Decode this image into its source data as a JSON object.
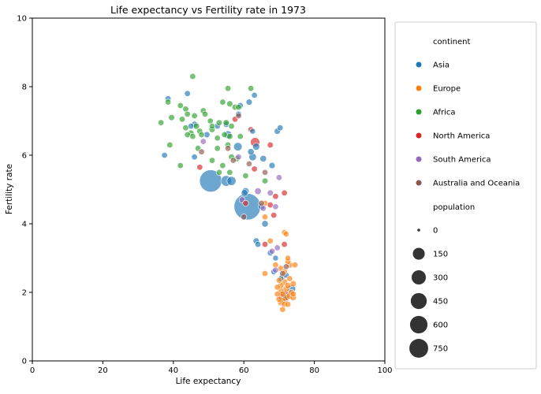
{
  "chart_data": {
    "type": "scatter",
    "title": "Life expectancy vs Fertility rate in 1973",
    "xlabel": "Life expectancy",
    "ylabel": "Fertility rate",
    "xlim": [
      0,
      100
    ],
    "ylim": [
      0,
      10
    ],
    "xticks": [
      "0",
      "20",
      "40",
      "60",
      "80",
      "100"
    ],
    "yticks": [
      "0",
      "2",
      "4",
      "6",
      "8",
      "10"
    ],
    "legend_position": "outside-right",
    "legend_hue_title": "continent",
    "legend_size_title": "population",
    "size_legend": [
      {
        "label": "0",
        "value": 0
      },
      {
        "label": "150",
        "value": 150
      },
      {
        "label": "300",
        "value": 300
      },
      {
        "label": "450",
        "value": 450
      },
      {
        "label": "600",
        "value": 600
      },
      {
        "label": "750",
        "value": 750
      }
    ],
    "series": [
      {
        "name": "Asia",
        "color": "#1f77b4",
        "points": [
          [
            50.6,
            5.25,
            580
          ],
          [
            61.0,
            4.5,
            880
          ],
          [
            55.0,
            5.25,
            90
          ],
          [
            56.5,
            5.25,
            55
          ],
          [
            60.5,
            4.95,
            25
          ],
          [
            60.2,
            4.9,
            20
          ],
          [
            58.3,
            6.25,
            45
          ],
          [
            55.5,
            6.6,
            35
          ],
          [
            63.5,
            6.25,
            25
          ],
          [
            62.5,
            5.95,
            30
          ],
          [
            62.0,
            6.1,
            18
          ],
          [
            65.5,
            5.9,
            18
          ],
          [
            68.0,
            5.7,
            15
          ],
          [
            69.5,
            6.7,
            15
          ],
          [
            70.3,
            6.8,
            12
          ],
          [
            61.5,
            7.55,
            14
          ],
          [
            63.0,
            7.75,
            12
          ],
          [
            59.0,
            7.45,
            12
          ],
          [
            58.5,
            7.2,
            12
          ],
          [
            55.0,
            6.9,
            14
          ],
          [
            52.5,
            6.85,
            12
          ],
          [
            49.5,
            6.6,
            14
          ],
          [
            46.0,
            6.9,
            16
          ],
          [
            45.0,
            6.85,
            12
          ],
          [
            44.0,
            7.8,
            12
          ],
          [
            38.5,
            7.65,
            12
          ],
          [
            37.5,
            6.0,
            12
          ],
          [
            46.0,
            5.95,
            12
          ],
          [
            62.5,
            6.7,
            10
          ],
          [
            66.0,
            4.0,
            18
          ],
          [
            65.0,
            4.5,
            16
          ],
          [
            63.5,
            3.5,
            14
          ],
          [
            64.0,
            3.4,
            12
          ],
          [
            67.5,
            3.15,
            12
          ],
          [
            68.5,
            2.6,
            12
          ],
          [
            72.0,
            2.5,
            12
          ],
          [
            73.5,
            2.1,
            45
          ],
          [
            71.5,
            1.85,
            30
          ],
          [
            70.5,
            2.4,
            12
          ],
          [
            69.0,
            3.0,
            10
          ]
        ]
      },
      {
        "name": "Europe",
        "color": "#ff7f0e",
        "points": [
          [
            66.0,
            4.6,
            12
          ],
          [
            66.0,
            4.2,
            12
          ],
          [
            67.5,
            3.5,
            12
          ],
          [
            66.0,
            2.55,
            12
          ],
          [
            69.0,
            2.8,
            12
          ],
          [
            70.5,
            2.7,
            12
          ],
          [
            71.5,
            2.6,
            12
          ],
          [
            72.5,
            2.9,
            14
          ],
          [
            73.0,
            2.8,
            16
          ],
          [
            74.5,
            2.8,
            12
          ],
          [
            71.0,
            2.45,
            14
          ],
          [
            70.0,
            2.35,
            12
          ],
          [
            70.5,
            2.2,
            14
          ],
          [
            71.5,
            2.3,
            18
          ],
          [
            72.5,
            2.2,
            16
          ],
          [
            73.0,
            2.4,
            12
          ],
          [
            74.0,
            2.25,
            14
          ],
          [
            69.5,
            2.15,
            12
          ],
          [
            70.5,
            2.05,
            16
          ],
          [
            71.0,
            1.95,
            14
          ],
          [
            72.0,
            2.1,
            20
          ],
          [
            73.5,
            2.0,
            12
          ],
          [
            69.5,
            1.95,
            12
          ],
          [
            70.0,
            1.8,
            14
          ],
          [
            71.0,
            1.75,
            18
          ],
          [
            72.0,
            1.85,
            22
          ],
          [
            73.0,
            1.9,
            18
          ],
          [
            74.0,
            1.85,
            16
          ],
          [
            70.5,
            1.7,
            16
          ],
          [
            71.5,
            1.65,
            14
          ],
          [
            71.0,
            1.5,
            12
          ],
          [
            72.5,
            1.65,
            12
          ],
          [
            71.5,
            3.75,
            10
          ],
          [
            72.0,
            3.7,
            10
          ],
          [
            72.5,
            3.0,
            10
          ],
          [
            74.0,
            1.95,
            12
          ]
        ]
      },
      {
        "name": "Africa",
        "color": "#2ca02c",
        "points": [
          [
            45.5,
            8.3,
            12
          ],
          [
            55.5,
            7.95,
            12
          ],
          [
            62.0,
            7.95,
            12
          ],
          [
            54.0,
            7.55,
            12
          ],
          [
            56.0,
            7.5,
            14
          ],
          [
            57.5,
            7.4,
            12
          ],
          [
            58.5,
            7.4,
            12
          ],
          [
            42.0,
            7.45,
            12
          ],
          [
            43.5,
            7.35,
            12
          ],
          [
            38.5,
            7.55,
            12
          ],
          [
            39.5,
            7.1,
            14
          ],
          [
            36.5,
            6.95,
            12
          ],
          [
            42.5,
            7.05,
            12
          ],
          [
            44.0,
            7.2,
            12
          ],
          [
            46.0,
            7.15,
            12
          ],
          [
            48.5,
            7.3,
            12
          ],
          [
            49.0,
            7.2,
            12
          ],
          [
            50.5,
            7.0,
            12
          ],
          [
            51.0,
            6.85,
            12
          ],
          [
            53.0,
            6.95,
            12
          ],
          [
            55.0,
            6.95,
            14
          ],
          [
            56.5,
            6.85,
            12
          ],
          [
            51.0,
            6.75,
            14
          ],
          [
            46.5,
            6.85,
            16
          ],
          [
            43.5,
            6.8,
            12
          ],
          [
            45.0,
            6.65,
            12
          ],
          [
            44.0,
            6.6,
            12
          ],
          [
            45.5,
            6.55,
            12
          ],
          [
            47.5,
            6.7,
            12
          ],
          [
            48.0,
            6.6,
            12
          ],
          [
            54.5,
            6.6,
            12
          ],
          [
            56.0,
            6.55,
            14
          ],
          [
            59.0,
            6.55,
            12
          ],
          [
            52.5,
            6.5,
            12
          ],
          [
            47.0,
            6.2,
            12
          ],
          [
            55.5,
            6.3,
            12
          ],
          [
            39.0,
            6.3,
            12
          ],
          [
            54.0,
            5.7,
            12
          ],
          [
            56.5,
            5.95,
            12
          ],
          [
            51.0,
            5.85,
            12
          ],
          [
            52.5,
            6.2,
            12
          ],
          [
            56.0,
            5.5,
            12
          ],
          [
            58.0,
            5.9,
            14
          ],
          [
            60.5,
            5.4,
            12
          ],
          [
            66.0,
            5.25,
            12
          ],
          [
            42.0,
            5.7,
            12
          ],
          [
            53.0,
            5.5,
            12
          ]
        ]
      },
      {
        "name": "North America",
        "color": "#d62728",
        "points": [
          [
            63.2,
            6.38,
            60
          ],
          [
            71.5,
            1.88,
            120
          ],
          [
            57.5,
            7.05,
            12
          ],
          [
            62.0,
            6.75,
            12
          ],
          [
            67.5,
            6.3,
            12
          ],
          [
            47.5,
            5.65,
            12
          ],
          [
            63.0,
            5.6,
            12
          ],
          [
            69.0,
            4.8,
            12
          ],
          [
            71.5,
            4.9,
            12
          ],
          [
            68.5,
            4.25,
            12
          ],
          [
            66.0,
            3.4,
            12
          ],
          [
            71.5,
            3.4,
            12
          ],
          [
            60.5,
            4.6,
            12
          ],
          [
            67.5,
            4.55,
            12
          ]
        ]
      },
      {
        "name": "South America",
        "color": "#9467bd",
        "points": [
          [
            64.0,
            4.95,
            20
          ],
          [
            67.5,
            4.9,
            14
          ],
          [
            70.0,
            5.35,
            12
          ],
          [
            69.0,
            4.5,
            12
          ],
          [
            65.5,
            4.45,
            12
          ],
          [
            58.5,
            5.95,
            12
          ],
          [
            59.5,
            4.7,
            14
          ],
          [
            48.5,
            6.4,
            12
          ],
          [
            69.5,
            3.3,
            12
          ],
          [
            68.0,
            3.2,
            12
          ],
          [
            69.0,
            2.65,
            12
          ]
        ]
      },
      {
        "name": "Australia and Oceania",
        "color": "#8c564b",
        "points": [
          [
            58.5,
            7.15,
            12
          ],
          [
            48.0,
            6.1,
            12
          ],
          [
            55.5,
            6.2,
            12
          ],
          [
            57.0,
            5.85,
            12
          ],
          [
            66.0,
            5.5,
            12
          ],
          [
            65.0,
            4.6,
            12
          ],
          [
            60.0,
            4.2,
            12
          ],
          [
            72.0,
            2.75,
            12
          ],
          [
            71.0,
            2.55,
            12
          ],
          [
            61.5,
            5.75,
            12
          ]
        ]
      }
    ]
  }
}
